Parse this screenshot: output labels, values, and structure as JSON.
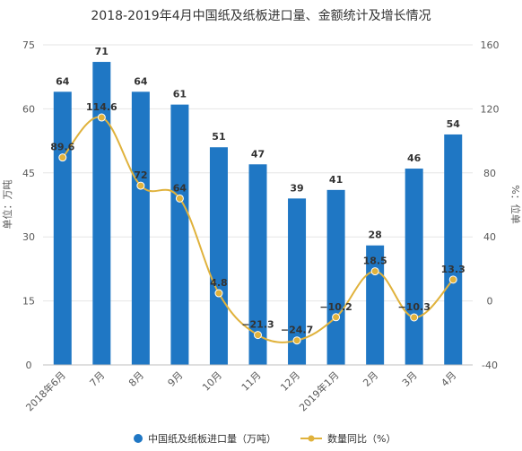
{
  "chart_data": {
    "type": "bar",
    "title": "2018-2019年4月中国纸及纸板进口量、金额统计及增长情况",
    "categories": [
      "2018年6月",
      "7月",
      "8月",
      "9月",
      "10月",
      "11月",
      "12月",
      "2019年1月",
      "2月",
      "3月",
      "4月"
    ],
    "series": [
      {
        "name": "中国纸及纸板进口量（万吨）",
        "type": "bar",
        "axis": "left",
        "color": "#1f77c4",
        "values": [
          64,
          71,
          64,
          61,
          51,
          47,
          39,
          41,
          28,
          46,
          54
        ],
        "labels": [
          "64",
          "71",
          "64",
          "61",
          "51",
          "47",
          "39",
          "41",
          "28",
          "46",
          "54"
        ]
      },
      {
        "name": "数量同比（%）",
        "type": "line",
        "axis": "right",
        "color": "#e0b23c",
        "values": [
          89.6,
          114.6,
          72,
          64,
          4.8,
          -21.3,
          -24.7,
          -10.2,
          18.5,
          -10.3,
          13.3
        ],
        "labels": [
          "89.6",
          "114.6",
          "72",
          "64",
          "4.8",
          "−21.3",
          "−24.7",
          "−10.2",
          "18.5",
          "−10.3",
          "13.3"
        ]
      }
    ],
    "ylabel": "单位：万吨",
    "ylabel_right": "%：位单",
    "ylim": [
      0,
      75
    ],
    "ylim_right": [
      -40,
      160
    ],
    "yticks": [
      "0",
      "15",
      "30",
      "45",
      "60",
      "75"
    ],
    "yticks_right": [
      "-40",
      "0",
      "40",
      "80",
      "120",
      "160"
    ],
    "grid": true,
    "legend_position": "bottom"
  }
}
